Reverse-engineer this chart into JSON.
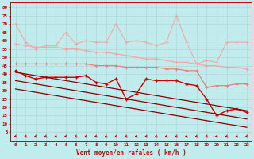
{
  "xlabel": "Vent moyen/en rafales ( km/h )",
  "background_color": "#c0ecee",
  "grid_color": "#aaaaaa",
  "x": [
    0,
    1,
    2,
    3,
    4,
    5,
    6,
    7,
    8,
    9,
    10,
    11,
    12,
    13,
    14,
    15,
    16,
    17,
    18,
    19,
    20,
    21,
    22,
    23
  ],
  "line_spiky_y": [
    70,
    59,
    55,
    57,
    57,
    65,
    58,
    60,
    59,
    59,
    70,
    59,
    60,
    59,
    57,
    59,
    75,
    59,
    46,
    48,
    47,
    59,
    59,
    59
  ],
  "line_upper_y": [
    58,
    57,
    56,
    56,
    56,
    55,
    55,
    54,
    53,
    53,
    52,
    51,
    50,
    49,
    49,
    48,
    47,
    47,
    46,
    45,
    45,
    44,
    44,
    43
  ],
  "line_mid_upper_y": [
    46,
    46,
    46,
    46,
    46,
    46,
    46,
    46,
    45,
    45,
    45,
    44,
    44,
    44,
    44,
    43,
    43,
    42,
    42,
    32,
    33,
    33,
    34,
    34
  ],
  "line_active_y": [
    42,
    39,
    37,
    38,
    38,
    38,
    38,
    39,
    35,
    34,
    37,
    25,
    28,
    37,
    36,
    36,
    36,
    34,
    33,
    25,
    15,
    18,
    19,
    17
  ],
  "line_trend1_y": [
    41,
    40,
    39,
    38,
    37,
    36,
    35,
    34,
    33,
    32,
    31,
    30,
    29,
    28,
    27,
    26,
    25,
    24,
    23,
    22,
    21,
    20,
    19,
    18
  ],
  "line_trend2_y": [
    36,
    35,
    34,
    33,
    32,
    31,
    30,
    29,
    28,
    27,
    26,
    25,
    24,
    23,
    22,
    21,
    20,
    19,
    18,
    17,
    16,
    15,
    14,
    13
  ],
  "line_trend3_y": [
    31,
    30,
    29,
    28,
    27,
    26,
    25,
    24,
    23,
    22,
    21,
    20,
    19,
    18,
    17,
    16,
    15,
    14,
    13,
    12,
    11,
    10,
    9,
    8
  ],
  "color_light": "#f0a8a8",
  "color_medium_light": "#e88080",
  "color_medium": "#dd4444",
  "color_dark": "#cc0000",
  "color_darkest": "#880000",
  "ylim": [
    0,
    83
  ],
  "yticks": [
    5,
    10,
    15,
    20,
    25,
    30,
    35,
    40,
    45,
    50,
    55,
    60,
    65,
    70,
    75,
    80
  ],
  "xticks": [
    0,
    1,
    2,
    3,
    4,
    5,
    6,
    7,
    8,
    9,
    10,
    11,
    12,
    13,
    14,
    15,
    16,
    17,
    18,
    19,
    20,
    21,
    22,
    23
  ]
}
